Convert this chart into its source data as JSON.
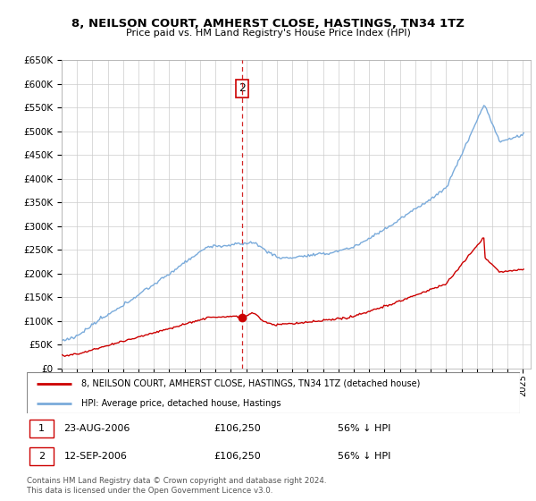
{
  "title": "8, NEILSON COURT, AMHERST CLOSE, HASTINGS, TN34 1TZ",
  "subtitle": "Price paid vs. HM Land Registry's House Price Index (HPI)",
  "hpi_color": "#7aabdb",
  "property_color": "#cc0000",
  "vline_color": "#cc0000",
  "ylim": [
    0,
    650000
  ],
  "yticks": [
    0,
    50000,
    100000,
    150000,
    200000,
    250000,
    300000,
    350000,
    400000,
    450000,
    500000,
    550000,
    600000,
    650000
  ],
  "sale1_date": "23-AUG-2006",
  "sale1_price": 106250,
  "sale1_pct": "56% ↓ HPI",
  "sale2_date": "12-SEP-2006",
  "sale2_price": 106250,
  "sale2_pct": "56% ↓ HPI",
  "legend_property": "8, NEILSON COURT, AMHERST CLOSE, HASTINGS, TN34 1TZ (detached house)",
  "legend_hpi": "HPI: Average price, detached house, Hastings",
  "footer": "Contains HM Land Registry data © Crown copyright and database right 2024.\nThis data is licensed under the Open Government Licence v3.0.",
  "background_color": "#ffffff",
  "grid_color": "#cccccc",
  "xlim_start": 1995.0,
  "xlim_end": 2025.5,
  "sale_t": 2006.71
}
